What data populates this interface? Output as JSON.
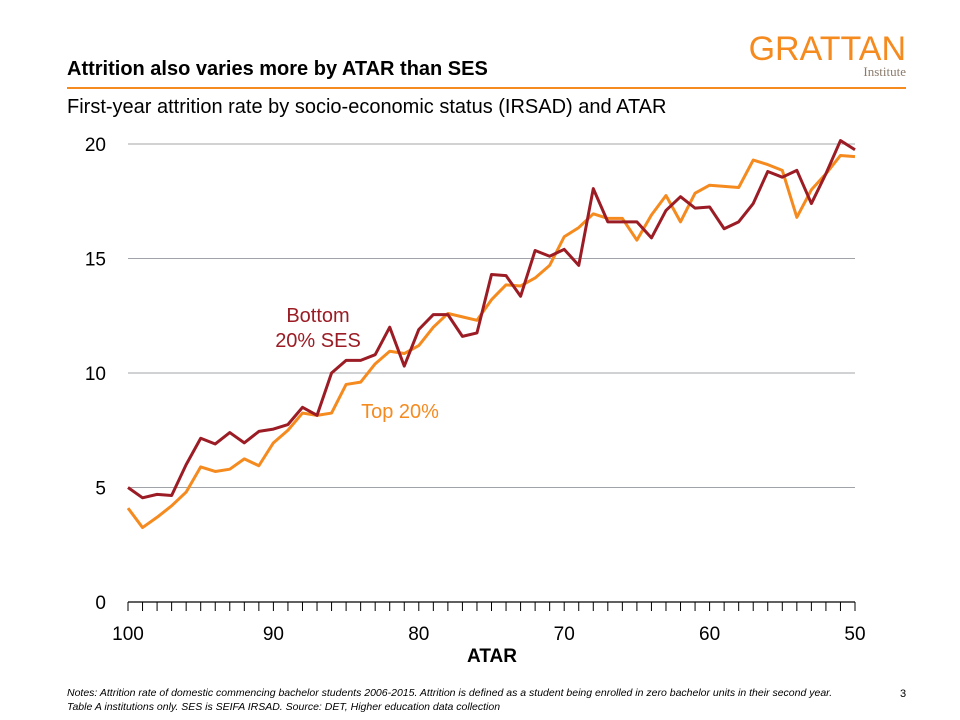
{
  "header": {
    "title": "Attrition also varies more by ATAR than SES",
    "subtitle": "First-year attrition rate by socio-economic status (IRSAD) and ATAR"
  },
  "logo": {
    "name": "GRATTAN",
    "sub": "Institute"
  },
  "footer": {
    "notes": "Notes: Attrition rate of domestic commencing bachelor students 2006-2015.  Attrition is defined as a student being enrolled in zero bachelor units in their second year. Table A institutions only. SES is SEIFA IRSAD. Source: DET, Higher education data collection",
    "page": "3"
  },
  "chart_data": {
    "type": "line",
    "title": "First-year attrition rate by socio-economic status (IRSAD) and ATAR",
    "xlabel": "ATAR",
    "ylabel": "",
    "xlim": [
      100,
      50
    ],
    "ylim": [
      0,
      20
    ],
    "xticks": [
      100,
      90,
      80,
      70,
      60,
      50
    ],
    "yticks": [
      0,
      5,
      10,
      15,
      20
    ],
    "grid": "horizontal",
    "x": [
      100,
      99,
      98,
      97,
      96,
      95,
      94,
      93,
      92,
      91,
      90,
      89,
      88,
      87,
      86,
      85,
      84,
      83,
      82,
      81,
      80,
      79,
      78,
      77,
      76,
      75,
      74,
      73,
      72,
      71,
      70,
      69,
      68,
      67,
      66,
      65,
      64,
      63,
      62,
      61,
      60,
      59,
      58,
      57,
      56,
      55,
      54,
      53,
      52,
      51,
      50
    ],
    "series": [
      {
        "name": "Bottom 20% SES",
        "label_lines": [
          "Bottom",
          "20% SES"
        ],
        "color": "#9b1c24",
        "values": [
          5.0,
          4.55,
          4.7,
          4.65,
          6.0,
          7.15,
          6.9,
          7.4,
          6.95,
          7.45,
          7.55,
          7.75,
          8.5,
          8.15,
          10.0,
          10.55,
          10.55,
          10.8,
          12.0,
          10.3,
          11.9,
          12.55,
          12.55,
          11.6,
          11.75,
          14.3,
          14.25,
          13.35,
          15.35,
          15.1,
          15.4,
          14.7,
          18.05,
          16.6,
          16.6,
          16.6,
          15.9,
          17.1,
          17.7,
          17.2,
          17.25,
          16.3,
          16.6,
          17.4,
          18.8,
          18.55,
          18.85,
          17.4,
          18.7,
          20.15,
          19.75
        ]
      },
      {
        "name": "Top 20%",
        "label_lines": [
          "Top 20%"
        ],
        "color": "#f58a1f",
        "values": [
          4.1,
          3.25,
          3.7,
          4.2,
          4.8,
          5.9,
          5.7,
          5.8,
          6.25,
          5.95,
          6.95,
          7.5,
          8.25,
          8.15,
          8.25,
          9.5,
          9.6,
          10.4,
          10.95,
          10.85,
          11.2,
          12.0,
          12.6,
          12.45,
          12.3,
          13.2,
          13.85,
          13.8,
          14.15,
          14.7,
          15.95,
          16.35,
          16.95,
          16.75,
          16.75,
          15.8,
          16.9,
          17.75,
          16.6,
          17.85,
          18.2,
          18.15,
          18.1,
          19.3,
          19.1,
          18.85,
          16.8,
          18.0,
          18.7,
          19.5,
          19.45
        ]
      }
    ]
  }
}
